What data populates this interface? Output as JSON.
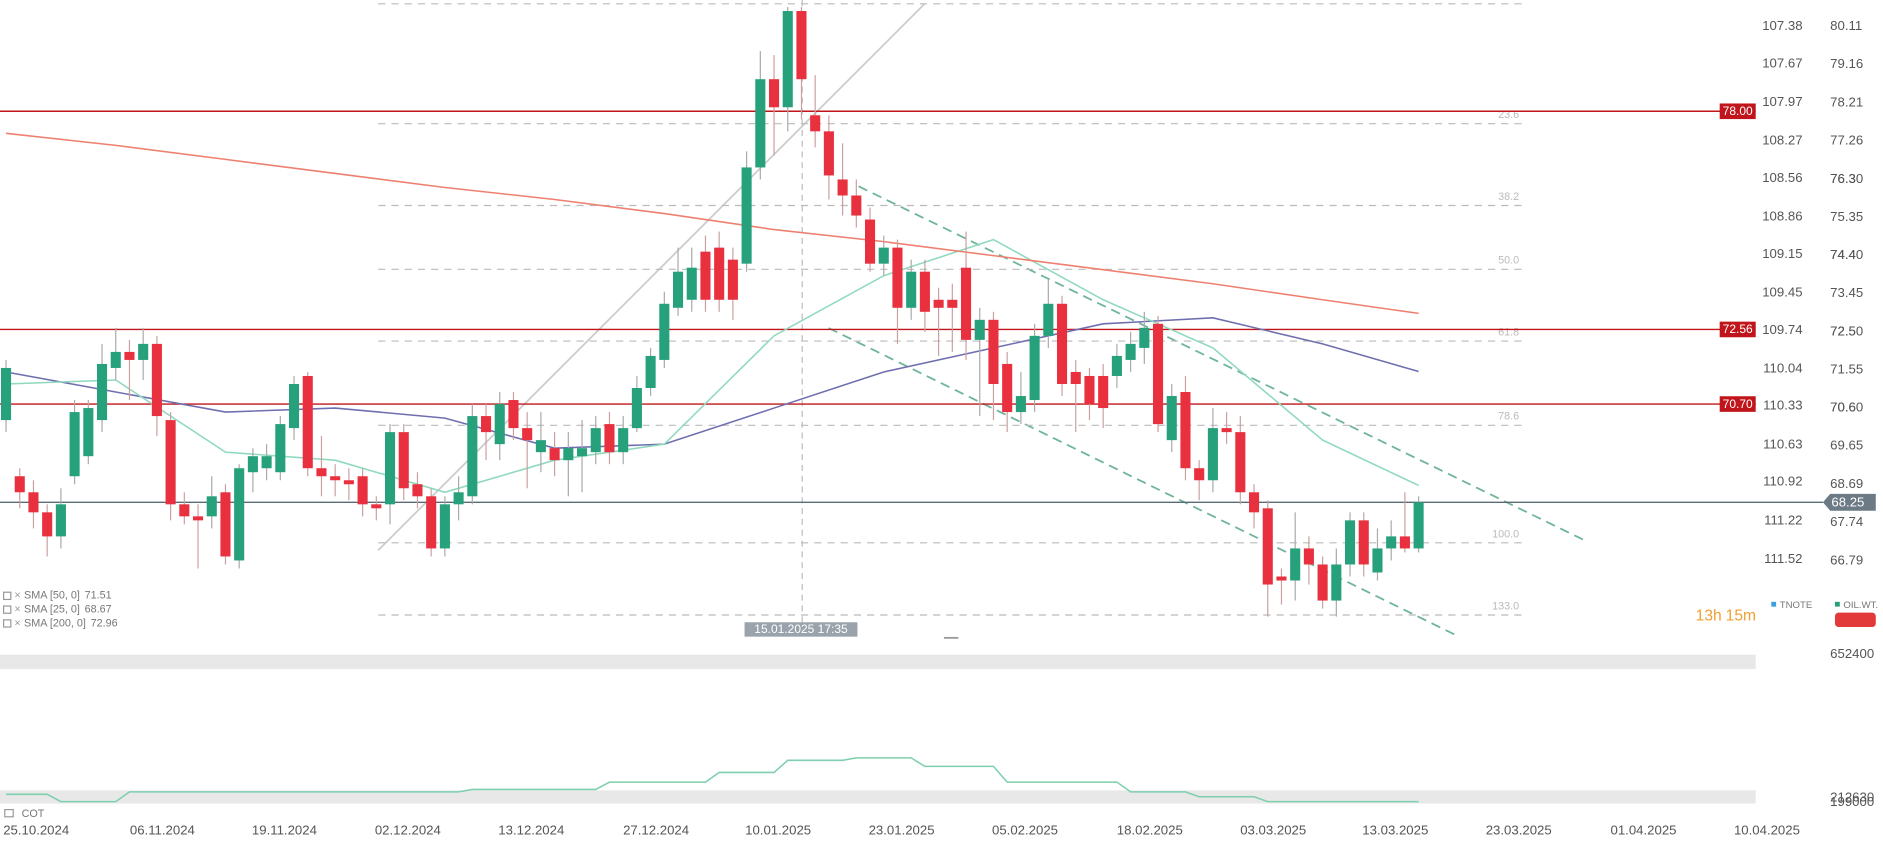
{
  "chart_data": [
    {
      "type": "candlestick",
      "open": [
        70.3,
        68.9,
        68.5,
        68.0,
        67.4,
        68.9,
        69.4,
        70.3,
        71.6,
        72.0,
        71.8,
        72.2,
        70.3,
        68.2,
        67.9,
        67.9,
        68.5,
        66.8,
        69.0,
        69.1,
        69.0,
        70.1,
        71.4,
        69.1,
        68.9,
        68.8,
        68.9,
        68.2,
        68.2,
        70.0,
        68.7,
        68.4,
        67.1,
        68.2,
        68.4,
        70.4,
        69.7,
        70.8,
        70.1,
        69.5,
        69.6,
        69.3,
        69.4,
        69.5,
        70.2,
        69.5,
        70.1,
        71.1,
        71.8,
        73.1,
        73.3,
        74.5,
        74.6,
        74.3,
        74.2,
        76.6,
        78.8,
        78.1,
        80.5,
        77.9,
        77.5,
        76.3,
        75.9,
        75.3,
        74.2,
        74.6,
        73.1,
        74.0,
        73.3,
        73.3,
        74.1,
        72.3,
        72.8,
        71.7,
        70.5,
        70.8,
        72.4,
        73.2,
        71.5,
        71.4,
        71.4,
        71.4,
        71.8,
        72.1,
        72.7,
        69.8,
        71.0,
        69.1,
        68.8,
        70.1,
        70.0,
        68.5,
        68.1,
        66.4,
        66.3,
        67.1,
        66.7,
        65.8,
        66.7,
        67.8,
        66.5,
        67.1,
        67.4,
        67.1
      ],
      "high": [
        71.8,
        69.1,
        68.8,
        68.2,
        68.6,
        70.8,
        70.8,
        72.2,
        72.6,
        72.3,
        72.6,
        72.4,
        70.5,
        68.5,
        68.2,
        68.9,
        68.7,
        69.2,
        69.6,
        69.7,
        70.4,
        71.4,
        71.5,
        69.9,
        69.2,
        69.1,
        69.1,
        68.4,
        70.2,
        70.2,
        69.0,
        68.6,
        68.4,
        68.9,
        70.7,
        70.7,
        71.0,
        71.0,
        70.5,
        70.5,
        70.0,
        70.0,
        70.3,
        70.4,
        70.5,
        70.4,
        71.4,
        72.1,
        73.5,
        74.6,
        74.6,
        74.9,
        75.0,
        74.6,
        77.0,
        79.5,
        79.4,
        80.6,
        80.6,
        78.9,
        77.9,
        77.2,
        76.3,
        75.6,
        74.9,
        74.8,
        74.3,
        74.3,
        73.6,
        73.7,
        75.0,
        73.1,
        73.0,
        72.0,
        71.5,
        72.7,
        73.8,
        73.4,
        71.8,
        71.6,
        71.7,
        72.2,
        72.5,
        73.0,
        72.9,
        71.2,
        71.4,
        69.3,
        70.6,
        70.5,
        70.4,
        68.7,
        68.3,
        66.6,
        68.0,
        67.4,
        66.9,
        67.1,
        68.0,
        68.0,
        67.6,
        67.8,
        68.5,
        68.4
      ],
      "low": [
        70.0,
        68.1,
        67.6,
        66.9,
        67.1,
        68.7,
        69.2,
        70.0,
        71.3,
        70.8,
        71.3,
        69.9,
        67.8,
        67.7,
        66.6,
        67.6,
        66.7,
        66.6,
        68.5,
        68.8,
        68.8,
        69.8,
        68.9,
        68.4,
        68.4,
        68.3,
        67.9,
        67.8,
        67.7,
        68.3,
        68.1,
        66.9,
        66.9,
        67.8,
        68.2,
        69.3,
        69.3,
        69.8,
        68.6,
        69.0,
        68.9,
        68.4,
        68.5,
        69.2,
        69.2,
        69.2,
        70.0,
        70.9,
        71.6,
        72.9,
        73.0,
        73.0,
        73.0,
        72.8,
        74.0,
        76.3,
        76.9,
        77.5,
        77.8,
        77.1,
        75.8,
        75.4,
        75.1,
        74.0,
        73.9,
        72.2,
        72.8,
        72.5,
        71.9,
        72.0,
        71.8,
        70.4,
        70.3,
        70.0,
        70.2,
        70.5,
        72.1,
        70.9,
        70.0,
        70.3,
        70.1,
        71.1,
        71.5,
        71.7,
        70.0,
        69.5,
        68.8,
        68.3,
        68.5,
        69.7,
        68.2,
        67.6,
        65.4,
        65.7,
        65.8,
        66.2,
        65.6,
        65.4,
        66.4,
        66.4,
        66.3,
        66.8,
        67.0,
        67.0
      ],
      "close": [
        71.6,
        68.5,
        68.0,
        67.4,
        68.2,
        70.5,
        70.6,
        71.7,
        72.0,
        71.8,
        72.2,
        70.4,
        68.2,
        67.9,
        67.8,
        68.4,
        66.9,
        69.1,
        69.4,
        69.4,
        70.2,
        71.2,
        69.1,
        68.9,
        68.8,
        68.7,
        68.2,
        68.1,
        70.0,
        68.6,
        68.4,
        67.1,
        68.2,
        68.5,
        70.4,
        70.0,
        70.7,
        70.1,
        69.8,
        69.8,
        69.3,
        69.6,
        69.6,
        70.1,
        69.5,
        70.1,
        71.1,
        71.9,
        73.2,
        74.0,
        74.1,
        73.3,
        73.3,
        73.3,
        76.6,
        78.8,
        78.1,
        80.5,
        78.8,
        77.5,
        76.4,
        75.9,
        75.4,
        74.2,
        74.6,
        73.1,
        74.0,
        73.0,
        73.1,
        73.1,
        72.3,
        72.8,
        71.2,
        70.5,
        70.9,
        72.4,
        73.2,
        71.2,
        71.2,
        70.7,
        70.6,
        71.9,
        72.2,
        72.6,
        70.2,
        70.9,
        69.1,
        68.8,
        70.1,
        70.0,
        68.5,
        68.0,
        66.2,
        66.3,
        67.1,
        66.7,
        65.8,
        66.7,
        67.8,
        66.7,
        67.1,
        67.4,
        67.1,
        68.25
      ],
      "up_color": "#26a17b",
      "down_color": "#e8303f",
      "series": [
        {
          "name": "SMA [50, 0]",
          "color": "#6f6fb0",
          "x": [
            0,
            8,
            16,
            24,
            32,
            40,
            48,
            56,
            64,
            72,
            80,
            88,
            96,
            103
          ],
          "values": [
            71.5,
            71.0,
            70.5,
            70.6,
            70.35,
            69.6,
            69.7,
            70.6,
            71.5,
            72.1,
            72.7,
            72.85,
            72.2,
            71.51
          ]
        },
        {
          "name": "SMA [25, 0]",
          "color": "#8fd9bd",
          "x": [
            0,
            8,
            16,
            24,
            32,
            40,
            48,
            56,
            64,
            72,
            80,
            88,
            96,
            103
          ],
          "values": [
            71.2,
            71.3,
            69.5,
            69.3,
            68.5,
            69.3,
            69.7,
            72.4,
            73.9,
            74.8,
            73.3,
            72.1,
            69.8,
            68.67
          ]
        },
        {
          "name": "SMA [200, 0]",
          "color": "#ee8070",
          "x": [
            0,
            8,
            16,
            24,
            32,
            40,
            48,
            56,
            64,
            72,
            80,
            88,
            96,
            103
          ],
          "values": [
            77.45,
            77.15,
            76.8,
            76.45,
            76.1,
            75.8,
            75.45,
            75.05,
            74.75,
            74.4,
            74.05,
            73.7,
            73.3,
            72.96
          ]
        }
      ],
      "xlim": [
        -0.44,
        127.58
      ],
      "xticks": [
        {
          "value": 2.2,
          "label": "25.10.2024"
        },
        {
          "value": 11.4,
          "label": "06.11.2024"
        },
        {
          "value": 20.3,
          "label": "19.11.2024"
        },
        {
          "value": 29.3,
          "label": "02.12.2024"
        },
        {
          "value": 38.3,
          "label": "13.12.2024"
        },
        {
          "value": 47.4,
          "label": "27.12.2024"
        },
        {
          "value": 56.3,
          "label": "10.01.2025"
        },
        {
          "value": 65.3,
          "label": "23.01.2025"
        },
        {
          "value": 74.3,
          "label": "05.02.2025"
        },
        {
          "value": 83.4,
          "label": "18.02.2025"
        },
        {
          "value": 92.4,
          "label": "03.03.2025"
        },
        {
          "value": 101.3,
          "label": "13.03.2025"
        },
        {
          "value": 110.3,
          "label": "23.03.2025"
        },
        {
          "value": 119.4,
          "label": "01.04.2025"
        },
        {
          "value": 128.4,
          "label": "10.04.2025"
        }
      ],
      "ylim": [
        64.9,
        80.77
      ],
      "yticks": [
        80.11,
        79.16,
        78.21,
        77.26,
        76.3,
        {
          "value": 76.3,
          "label": "76.30"
        },
        75.35,
        74.4,
        {
          "value": 74.4,
          "label": "74.40"
        },
        73.45,
        72.5,
        {
          "value": 72.5,
          "label": "72.50"
        },
        71.55,
        70.6,
        {
          "value": 70.6,
          "label": "70.60"
        },
        69.65,
        68.69,
        67.74,
        66.79
      ],
      "y2lim": [
        112.12,
        107.175
      ],
      "y2ticks": [
        107.38,
        107.67,
        107.97,
        108.27,
        108.56,
        108.86,
        109.15,
        109.45,
        109.74,
        110.04,
        110.33,
        110.63,
        110.92,
        111.22,
        111.52
      ],
      "levels": [
        {
          "value": 78,
          "label": "78.00"
        },
        72.56,
        {
          "value": 70.7,
          "label": "70.70"
        }
      ],
      "level_color": "#c0161b",
      "last_price": 68.25,
      "fib": {
        "prices": [
          80.68,
          77.69,
          75.65,
          74.06,
          72.27,
          70.17,
          67.24,
          65.44
        ],
        "labels": [
          null,
          "23.6",
          "38.2",
          {
            "value": 50,
            "label": "50.0"
          },
          "61.8",
          "78.6",
          {
            "value": 100,
            "label": "100.0"
          },
          {
            "value": 133,
            "label": "133.0"
          }
        ]
      },
      "crosshair_label": "15.01.2025 17:35",
      "countdown": {
        "hours": "13h",
        "minutes": "15m"
      },
      "symbols": [
        "TNOTE",
        "OIL.WT."
      ]
    },
    {
      "type": "line",
      "series": [
        {
          "name": "COT",
          "color": "#7fcfae",
          "x": [
            0,
            3,
            4,
            8,
            9,
            33,
            34,
            43,
            44,
            51,
            52,
            56,
            57,
            61,
            62,
            66,
            67,
            72,
            73,
            81,
            82,
            86,
            87,
            91,
            92,
            103
          ],
          "values": [
            223800,
            223800,
            201400,
            201400,
            231200,
            231200,
            238700,
            238700,
            261100,
            261100,
            290900,
            290900,
            328200,
            328200,
            335600,
            335600,
            309500,
            309500,
            261100,
            261100,
            231200,
            231200,
            216300,
            216300,
            201400,
            201400
          ]
        }
      ],
      "ylim": [
        199000,
        652400
      ],
      "yticks": [
        199000,
        212630,
        652400
      ]
    }
  ]
}
